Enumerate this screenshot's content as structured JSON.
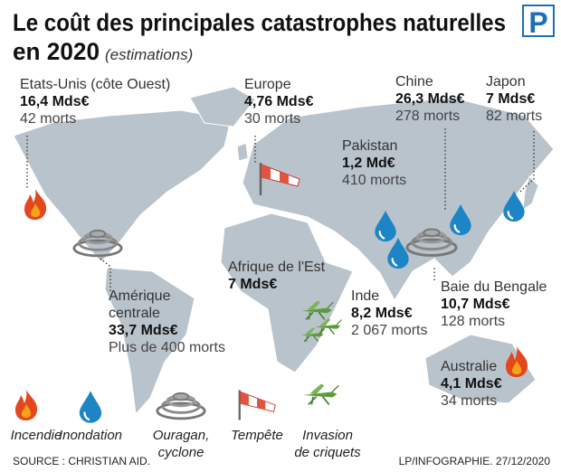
{
  "title": [
    "Le coût des principales catastrophes naturelles",
    "en 2020"
  ],
  "subtitle": "(estimations)",
  "logo": "P",
  "callouts": [
    {
      "region": [
        "Etats-Unis (côte Ouest)"
      ],
      "cost": "16,4 Mds€",
      "deaths": "42 morts"
    },
    {
      "region": [
        "Europe"
      ],
      "cost": "4,76 Mds€",
      "deaths": "30 morts"
    },
    {
      "region": [
        "Chine"
      ],
      "cost": "26,3 Mds€",
      "deaths": "278 morts"
    },
    {
      "region": [
        "Japon"
      ],
      "cost": "7 Mds€",
      "deaths": "82 morts"
    },
    {
      "region": [
        "Pakistan"
      ],
      "cost": "1,2 Md€",
      "deaths": "410 morts"
    },
    {
      "region": [
        "Afrique de l'Est"
      ],
      "cost": "7 Mds€"
    },
    {
      "region": [
        "Amérique",
        "centrale"
      ],
      "cost": "33,7 Mds€",
      "deaths": "Plus de 400 morts"
    },
    {
      "region": [
        "Inde"
      ],
      "cost": "8,2 Mds€",
      "deaths": "2 067 morts"
    },
    {
      "region": [
        "Baie du Bengale"
      ],
      "cost": "10,7 Mds€",
      "deaths": "128 morts"
    },
    {
      "region": [
        "Australie"
      ],
      "cost": "4,1 Mds€",
      "deaths": "34 morts"
    }
  ],
  "legend": [
    {
      "label": [
        "Incendie"
      ]
    },
    {
      "label": [
        "Inondation"
      ]
    },
    {
      "label": [
        "Ouragan,",
        "cyclone"
      ]
    },
    {
      "label": [
        "Tempête"
      ]
    },
    {
      "label": [
        "Invasion",
        "de criquets"
      ]
    }
  ],
  "source": "SOURCE : CHRISTIAN AID.",
  "credit": "LP/INFOGRAPHIE.  27/12/2020"
}
